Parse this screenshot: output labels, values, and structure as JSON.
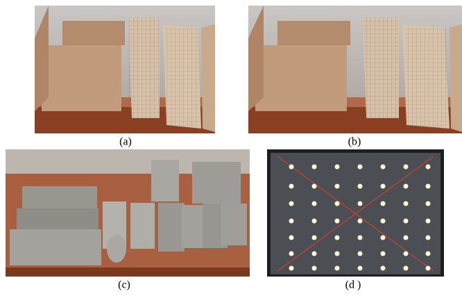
{
  "figure": {
    "panels": [
      {
        "caption": "(a)"
      },
      {
        "caption": "(b)"
      },
      {
        "caption": "(c)"
      },
      {
        "caption": "(d )"
      }
    ]
  }
}
